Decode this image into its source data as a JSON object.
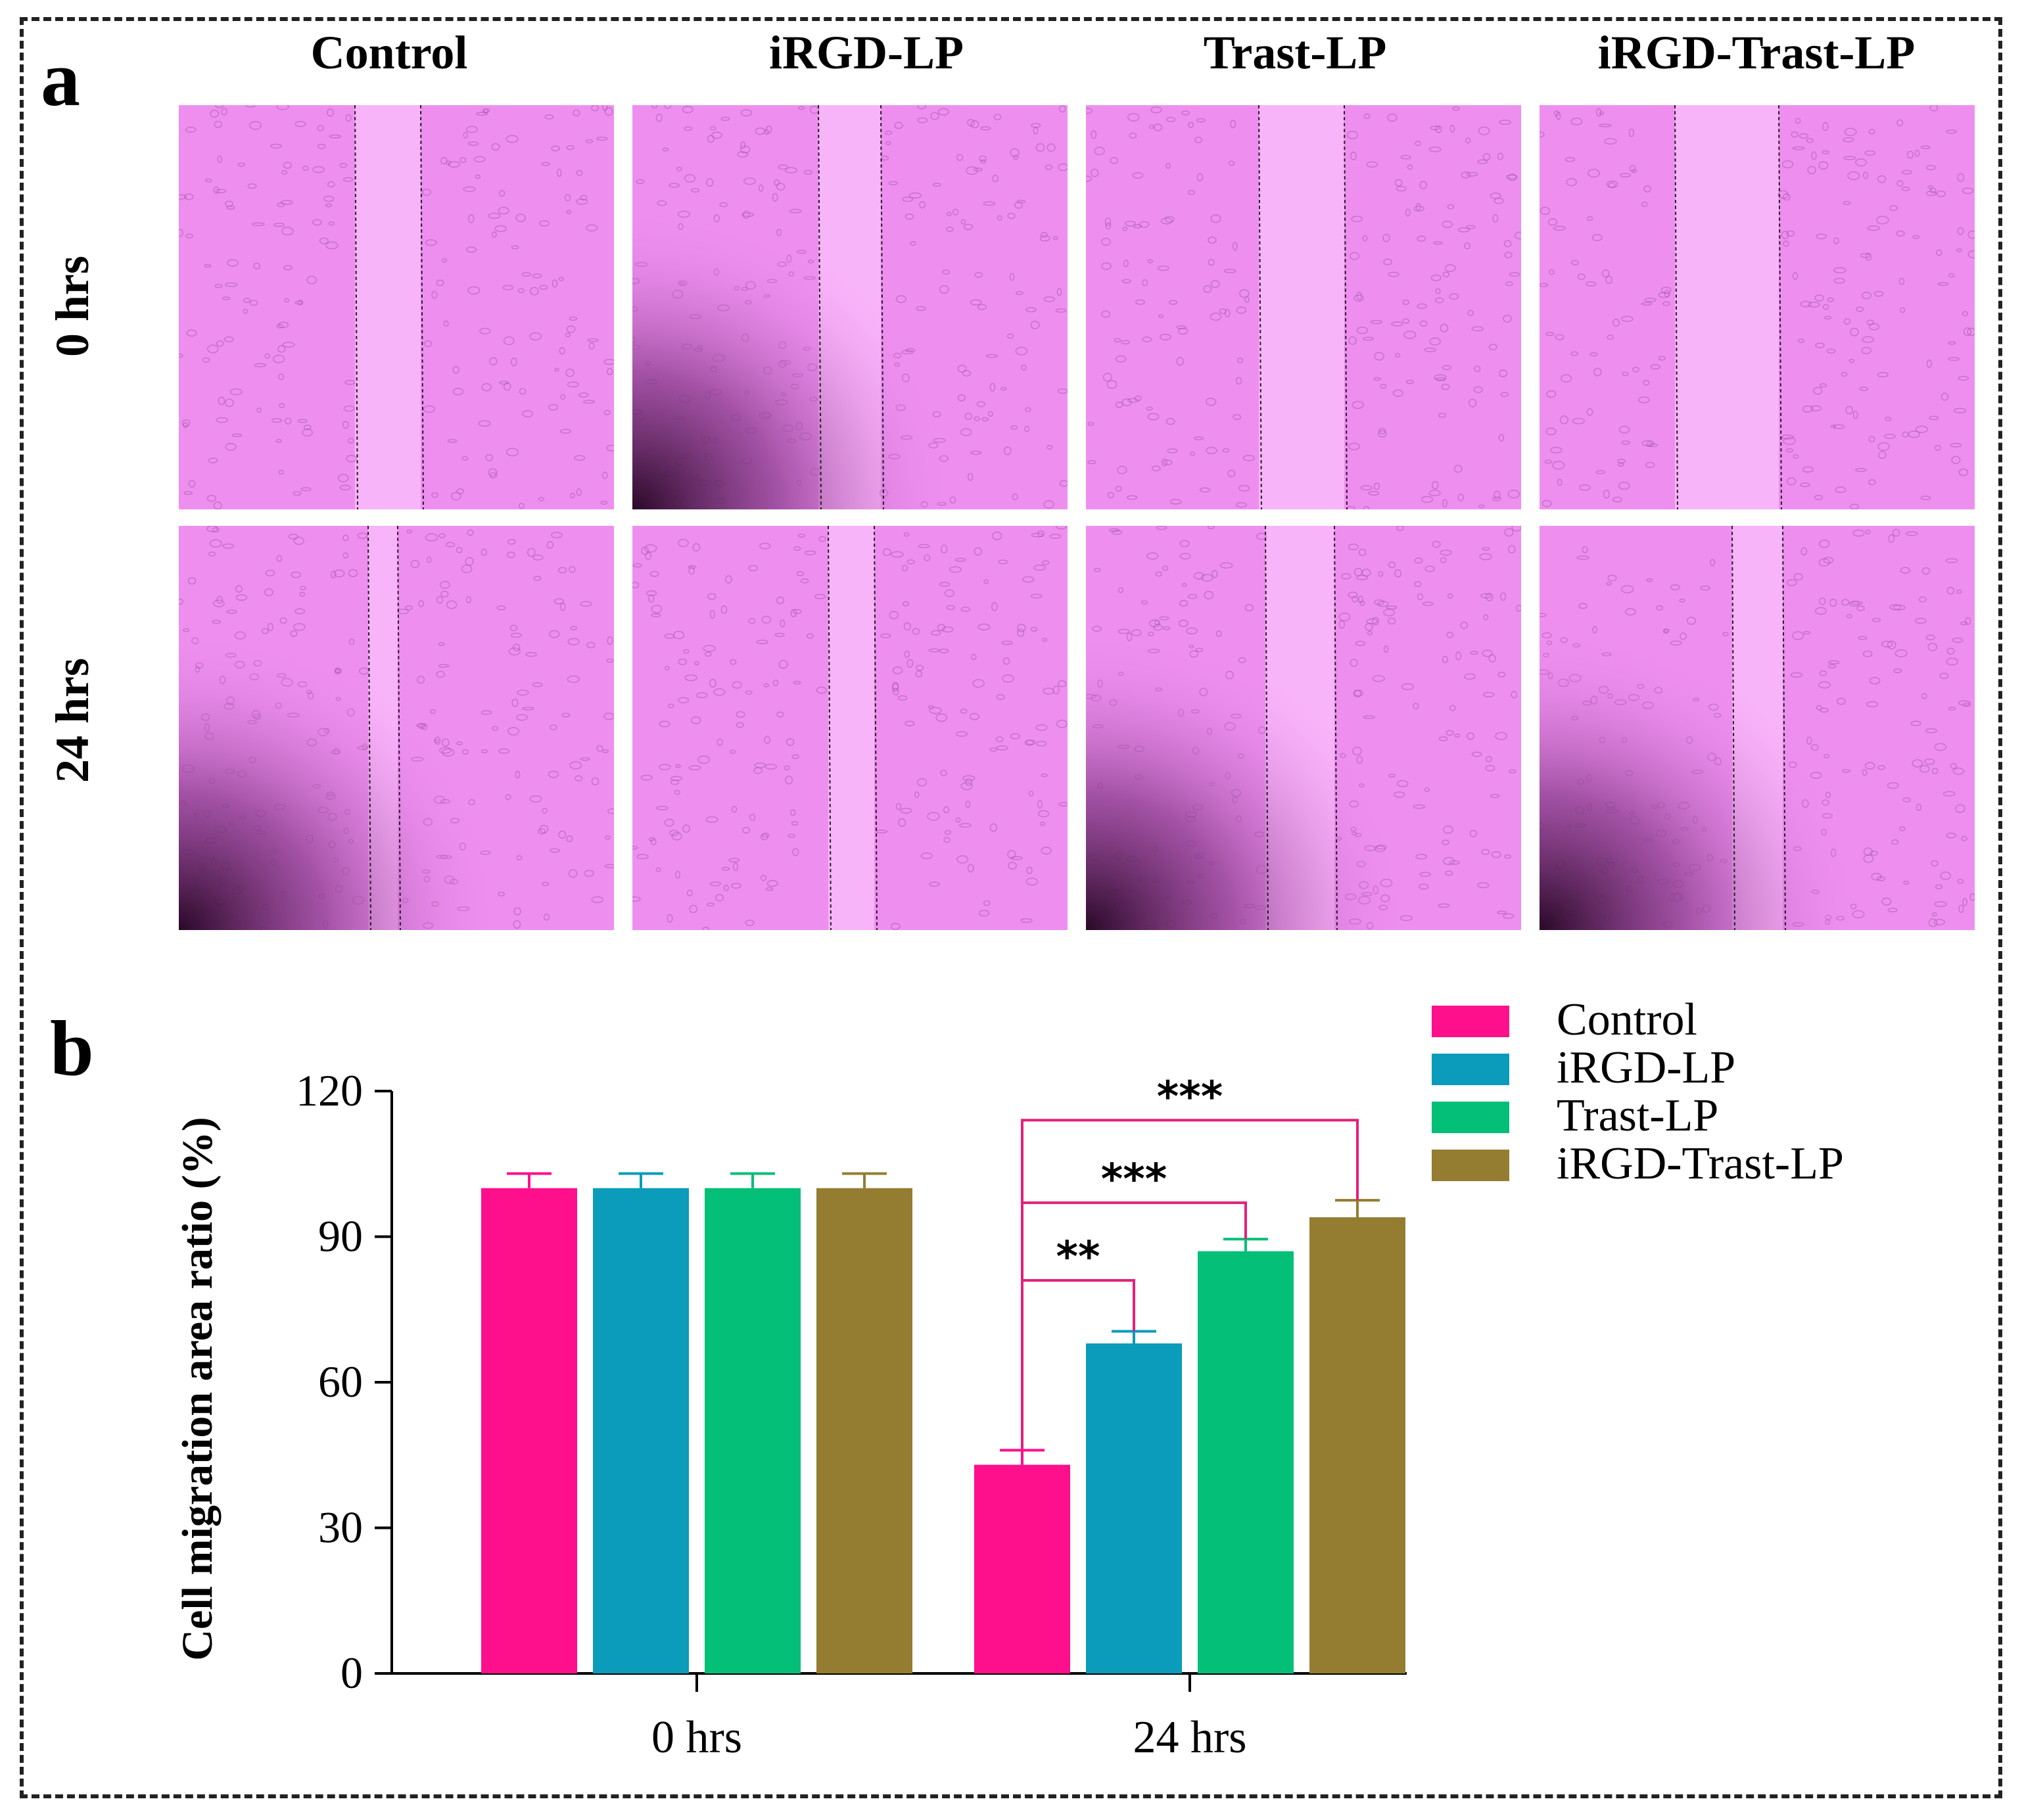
{
  "panel_a": {
    "letter": "a",
    "columns": [
      "Control",
      "iRGD-LP",
      "Trast-LP",
      "iRGD-Trast-LP"
    ],
    "rows": [
      "0 hrs",
      "24 hrs"
    ],
    "image_description_names": [
      [
        "micrograph-control-0hrs",
        "micrograph-irgd-lp-0hrs",
        "micrograph-trast-lp-0hrs",
        "micrograph-irgd-trast-lp-0hrs"
      ],
      [
        "micrograph-control-24hrs",
        "micrograph-irgd-lp-24hrs",
        "micrograph-trast-lp-24hrs",
        "micrograph-irgd-trast-lp-24hrs"
      ]
    ]
  },
  "panel_b": {
    "letter": "b"
  },
  "colors": {
    "Control": "#fe0f8c",
    "iRGD-LP": "#0a9cba",
    "Trast-LP": "#04bf77",
    "iRGD-Trast-LP": "#947d31",
    "bracket": "#e3217b",
    "tissue": "#ee8ff0"
  },
  "chart_data": {
    "type": "bar",
    "title": "",
    "xlabel": "",
    "ylabel": "Cell migration area ratio (%)",
    "ylim": [
      0,
      120
    ],
    "yticks": [
      0,
      30,
      60,
      90,
      120
    ],
    "categories": [
      "0 hrs",
      "24 hrs"
    ],
    "legend_position": "top-right",
    "series": [
      {
        "name": "Control",
        "values": [
          100,
          43
        ],
        "errors": [
          3,
          3
        ]
      },
      {
        "name": "iRGD-LP",
        "values": [
          100,
          68
        ],
        "errors": [
          3,
          2.5
        ]
      },
      {
        "name": "Trast-LP",
        "values": [
          100,
          87
        ],
        "errors": [
          3,
          2.5
        ]
      },
      {
        "name": "iRGD-Trast-LP",
        "values": [
          100,
          94
        ],
        "errors": [
          3,
          3.5
        ]
      }
    ],
    "significance": [
      {
        "category": "24 hrs",
        "from": "Control",
        "to": "iRGD-LP",
        "y": 81,
        "label": "**"
      },
      {
        "category": "24 hrs",
        "from": "Control",
        "to": "Trast-LP",
        "y": 97,
        "label": "***"
      },
      {
        "category": "24 hrs",
        "from": "Control",
        "to": "iRGD-Trast-LP",
        "y": 114,
        "label": "***"
      }
    ]
  }
}
